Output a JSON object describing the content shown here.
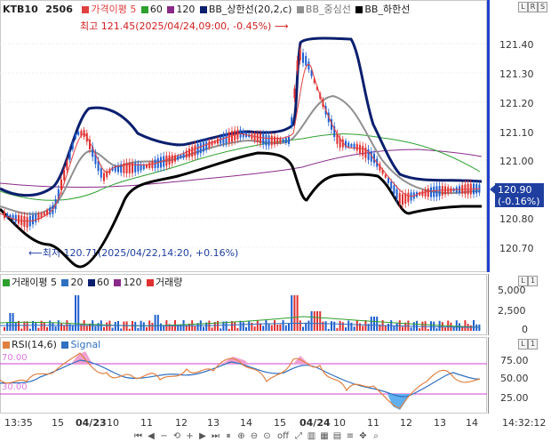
{
  "main": {
    "symbol": "KTB10",
    "contract": "2506",
    "legend": {
      "price_ma5": "가격이평 5",
      "ma60": "60",
      "ma120": "120",
      "bb_upper": "BB_상한선(20,2,c)",
      "bb_mid": "BB_중심선",
      "bb_lower": "BB_하한선"
    },
    "high_annotation": "최고 121.45(2025/04/24,09:00, -0.45%)",
    "low_annotation": "최저 120.71(2025/04/22,14:20, +0.16%)",
    "y_ticks": [
      "121.40",
      "121.30",
      "121.20",
      "121.10",
      "121.00",
      "120.80",
      "120.70"
    ],
    "last_price": "120.90",
    "change": "(-0.16%)",
    "mini_buttons": [
      "L",
      "R",
      "S"
    ]
  },
  "volume": {
    "legend": {
      "label": "거래이평 5",
      "ma20": "20",
      "ma60": "60",
      "ma120": "120",
      "volume": "거래량"
    },
    "y_ticks": [
      "5,000",
      "2,500",
      "0"
    ],
    "mini_buttons": [
      "L",
      "1"
    ]
  },
  "rsi": {
    "legend": {
      "rsi": "RSI(14,6)",
      "signal": "Signal"
    },
    "level_high": "70.00",
    "level_low": "30.00",
    "y_ticks": [
      "75.00",
      "50.00",
      "25.00"
    ],
    "mini_buttons": [
      "L",
      "1"
    ]
  },
  "x_axis": {
    "labels": [
      {
        "text": "13:35"
      },
      {
        "text": "15"
      },
      {
        "text": "04/23",
        "bold": true
      },
      {
        "text": "10"
      },
      {
        "text": "11"
      },
      {
        "text": "12"
      },
      {
        "text": "13"
      },
      {
        "text": "14"
      },
      {
        "text": "15"
      },
      {
        "text": "04/24",
        "bold": true
      },
      {
        "text": "10"
      },
      {
        "text": "11"
      },
      {
        "text": "12"
      },
      {
        "text": "13"
      },
      {
        "text": "14"
      }
    ],
    "time": "14:32:12"
  },
  "toolbar": {
    "icons": [
      "arrow-left-end-icon",
      "arrow-left-icon",
      "minus-icon",
      "reset-icon",
      "plus-icon",
      "arrow-right-icon",
      "arrow-right-end-icon",
      "pause-icon",
      "zoom-in-icon",
      "zoom-out-icon",
      "zoom-reset-icon",
      "expand-icon",
      "chart-icon",
      "grid-icon",
      "layout-icon",
      "list-icon",
      "cursor-icon",
      "zoom-icon"
    ],
    "off_label": "off"
  },
  "colors": {
    "up": "#e03030",
    "down": "#1f5fd0",
    "bb_upper": "#0b1f6e",
    "bb_lower": "#000000",
    "bb_mid": "#909090",
    "ma5": "#e04040",
    "ma60": "#2ea02e",
    "ma120": "#8a2b8a",
    "rsi": "#e08040",
    "signal": "#3070c0",
    "level_line": "#d040d0"
  }
}
